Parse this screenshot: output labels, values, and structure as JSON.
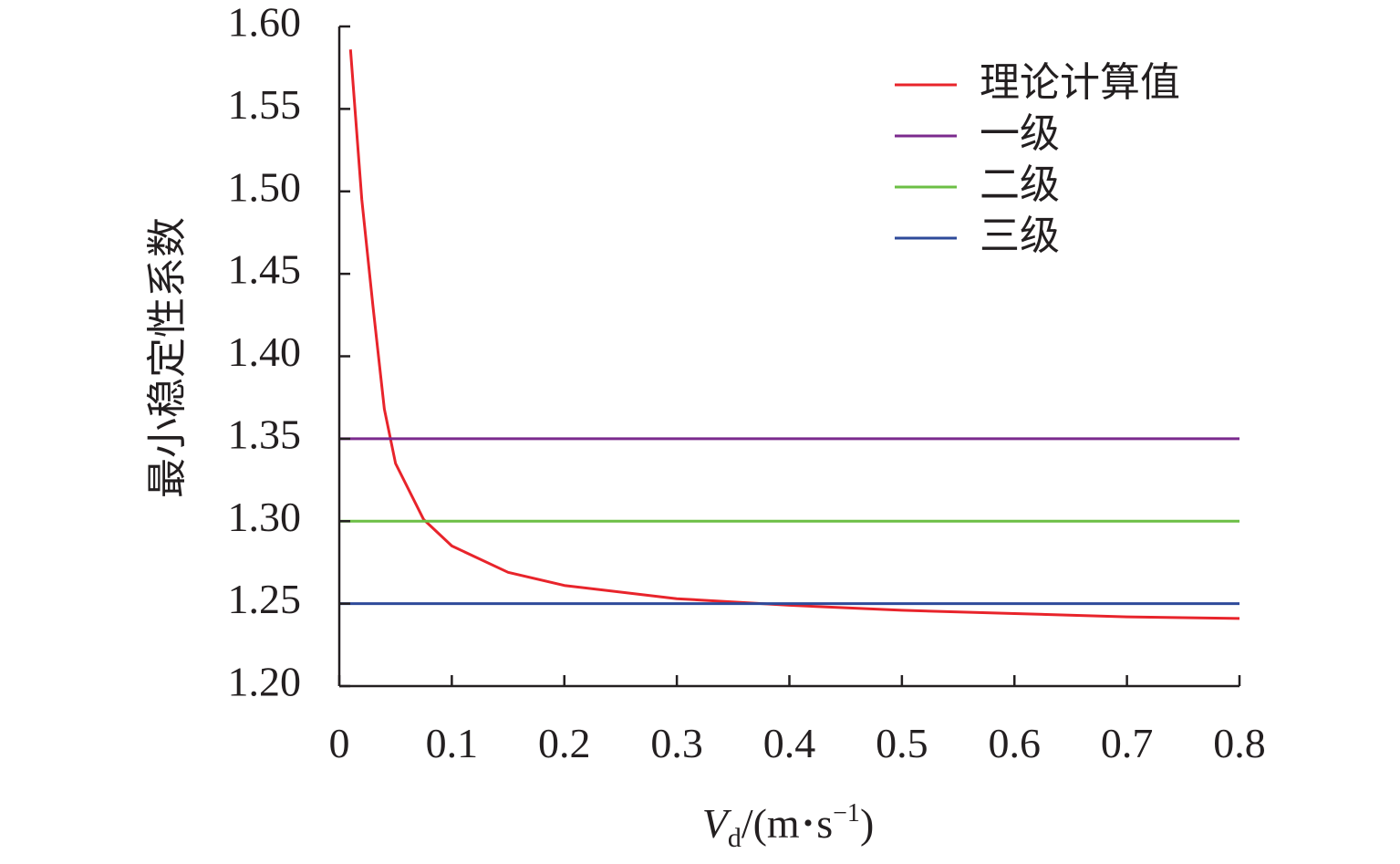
{
  "chart_data": {
    "type": "line",
    "title": "",
    "xlabel": {
      "symbol": "V",
      "subscript": "d",
      "unit_open": "/(m",
      "dot": "•",
      "unit_s": "s",
      "exponent": "−1",
      "unit_close": ")"
    },
    "ylabel": "最小稳定性系数",
    "xlim": [
      0,
      0.8
    ],
    "ylim": [
      1.2,
      1.6
    ],
    "x_ticks": [
      "0",
      "0.1",
      "0.2",
      "0.3",
      "0.4",
      "0.5",
      "0.6",
      "0.7",
      "0.8"
    ],
    "y_ticks": [
      "1.20",
      "1.25",
      "1.30",
      "1.35",
      "1.40",
      "1.45",
      "1.50",
      "1.55",
      "1.60"
    ],
    "legend_position": "top-right",
    "series": [
      {
        "name": "理论计算值",
        "color": "#e8242b",
        "x": [
          0.01,
          0.02,
          0.03,
          0.04,
          0.05,
          0.075,
          0.1,
          0.15,
          0.2,
          0.3,
          0.4,
          0.5,
          0.6,
          0.7,
          0.8
        ],
        "y": [
          1.586,
          1.495,
          1.43,
          1.368,
          1.335,
          1.301,
          1.285,
          1.269,
          1.261,
          1.253,
          1.249,
          1.246,
          1.244,
          1.242,
          1.241
        ]
      },
      {
        "name": "一级",
        "color": "#7b2a8e",
        "x": [
          0,
          0.8
        ],
        "y": [
          1.35,
          1.35
        ]
      },
      {
        "name": "二级",
        "color": "#6cbf45",
        "x": [
          0,
          0.8
        ],
        "y": [
          1.3,
          1.3
        ]
      },
      {
        "name": "三级",
        "color": "#2e4a9a",
        "x": [
          0,
          0.8
        ],
        "y": [
          1.25,
          1.25
        ]
      }
    ]
  }
}
